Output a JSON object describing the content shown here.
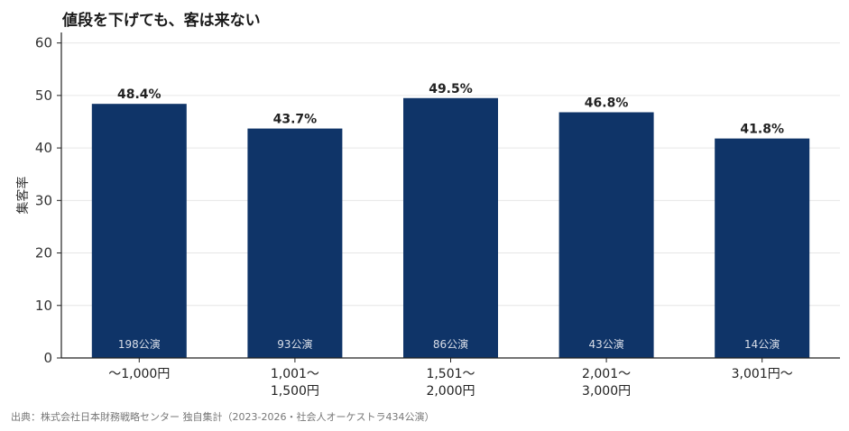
{
  "title": "値段を下げても、客は来ない",
  "source": "出典：株式会社日本財務戦略センター 独自集計（2023-2026・社会人オーケストラ434公演）",
  "colors": {
    "bar": "#0f3468",
    "grid": "#e6e6e6",
    "axis": "#222222",
    "count_text": "#d9dee8"
  },
  "chart_data": {
    "type": "bar",
    "categories": [
      [
        "〜1,000円"
      ],
      [
        "1,001〜",
        "1,500円"
      ],
      [
        "1,501〜",
        "2,000円"
      ],
      [
        "2,001〜",
        "3,000円"
      ],
      [
        "3,001円〜"
      ]
    ],
    "values": [
      48.4,
      43.7,
      49.5,
      46.8,
      41.8
    ],
    "value_labels": [
      "48.4%",
      "43.7%",
      "49.5%",
      "46.8%",
      "41.8%"
    ],
    "counts": [
      "198公演",
      "93公演",
      "86公演",
      "43公演",
      "14公演"
    ],
    "ylabel": "集客率",
    "xlabel": "",
    "ylim": [
      0,
      62
    ],
    "yticks": [
      0,
      10,
      20,
      30,
      40,
      50,
      60
    ],
    "grid": true,
    "legend": "none"
  }
}
